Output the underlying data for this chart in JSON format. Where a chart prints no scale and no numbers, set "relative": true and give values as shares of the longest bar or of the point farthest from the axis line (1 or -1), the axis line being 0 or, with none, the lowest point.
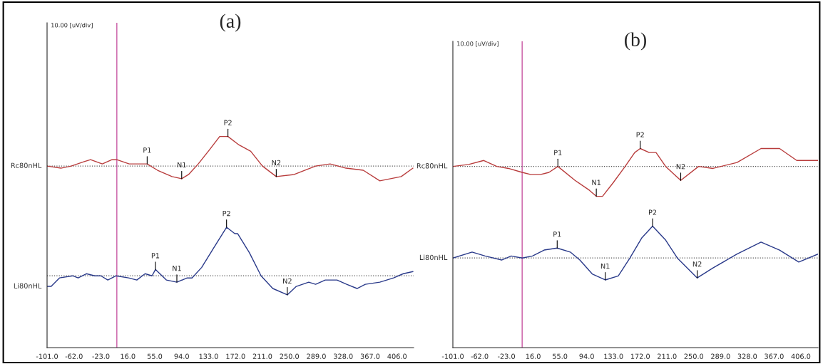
{
  "chart_data": [
    {
      "type": "line",
      "title": "(a)",
      "relative": true,
      "xlim": [
        -101,
        430
      ],
      "xticks": [
        {
          "value": -101,
          "label": "-101.0"
        },
        {
          "value": -62,
          "label": "-62.0"
        },
        {
          "value": -23,
          "label": "-23.0"
        },
        {
          "value": 16,
          "label": "16.0"
        },
        {
          "value": 55,
          "label": "55.0"
        },
        {
          "value": 94,
          "label": "94.0"
        },
        {
          "value": 133,
          "label": "133.0"
        },
        {
          "value": 172,
          "label": "172.0"
        },
        {
          "value": 211,
          "label": "211.0"
        },
        {
          "value": 250,
          "label": "250.0"
        },
        {
          "value": 289,
          "label": "289.0"
        },
        {
          "value": 328,
          "label": "328.0"
        },
        {
          "value": 367,
          "label": "367.0"
        },
        {
          "value": 406,
          "label": "406.0"
        }
      ],
      "tick_labels": "x",
      "legend": false,
      "grid": false,
      "line_style": "solid",
      "ref_lines": [
        {
          "axis": "x",
          "value": 0,
          "color": "#d070b0",
          "line_style": "solid"
        },
        {
          "axis": "y",
          "value": 0.86,
          "color": "#555555",
          "line_style": "dotted"
        },
        {
          "axis": "y",
          "value": 0.34,
          "color": "#555555",
          "line_style": "dotted"
        }
      ],
      "annotations": [
        "10.00 [uV/div]",
        {
          "text": "P1",
          "x": 44,
          "y": 0.87
        },
        {
          "text": "N1",
          "x": 94,
          "y": 0.8
        },
        {
          "text": "P2",
          "x": 161,
          "y": 1.0
        },
        {
          "text": "N2",
          "x": 231,
          "y": 0.81
        },
        {
          "text": "P1",
          "x": 56,
          "y": 0.37
        },
        {
          "text": "N1",
          "x": 87,
          "y": 0.31
        },
        {
          "text": "P2",
          "x": 159,
          "y": 0.57
        },
        {
          "text": "N2",
          "x": 247,
          "y": 0.25
        }
      ],
      "series": [
        {
          "name": "Rc80nHL",
          "color": "#b83c3c",
          "x": [
            -101,
            -81,
            -66,
            -48,
            -38,
            -21,
            -7,
            0,
            18,
            44,
            59,
            80,
            94,
            104,
            118,
            135,
            149,
            161,
            173,
            177,
            194,
            211,
            231,
            257,
            288,
            309,
            332,
            357,
            381,
            412,
            429
          ],
          "values": [
            0.86,
            0.85,
            0.86,
            0.88,
            0.89,
            0.87,
            0.89,
            0.89,
            0.87,
            0.87,
            0.84,
            0.81,
            0.8,
            0.82,
            0.87,
            0.94,
            1.0,
            1.0,
            0.97,
            0.96,
            0.93,
            0.86,
            0.81,
            0.82,
            0.86,
            0.87,
            0.85,
            0.84,
            0.79,
            0.81,
            0.85
          ]
        },
        {
          "name": "Li80nHL",
          "color": "#2a3a8a",
          "x": [
            -101,
            -95,
            -83,
            -64,
            -56,
            -44,
            -32,
            -23,
            -13,
            -1,
            17,
            29,
            41,
            51,
            56,
            72,
            87,
            102,
            109,
            123,
            140,
            159,
            171,
            175,
            192,
            209,
            226,
            247,
            260,
            278,
            288,
            302,
            319,
            333,
            348,
            360,
            381,
            401,
            415,
            429
          ],
          "values": [
            0.29,
            0.29,
            0.33,
            0.34,
            0.33,
            0.35,
            0.34,
            0.34,
            0.32,
            0.34,
            0.33,
            0.32,
            0.35,
            0.34,
            0.37,
            0.32,
            0.31,
            0.33,
            0.33,
            0.38,
            0.47,
            0.57,
            0.54,
            0.54,
            0.45,
            0.34,
            0.28,
            0.25,
            0.29,
            0.31,
            0.3,
            0.32,
            0.32,
            0.3,
            0.28,
            0.3,
            0.31,
            0.33,
            0.35,
            0.36
          ]
        }
      ]
    },
    {
      "type": "line",
      "title": "(b)",
      "relative": true,
      "xlim": [
        -101,
        431
      ],
      "xticks": [
        {
          "value": -101,
          "label": "-101.0"
        },
        {
          "value": -62,
          "label": "-62.0"
        },
        {
          "value": -23,
          "label": "-23.0"
        },
        {
          "value": 16,
          "label": "16.0"
        },
        {
          "value": 55,
          "label": "55.0"
        },
        {
          "value": 94,
          "label": "94.0"
        },
        {
          "value": 133,
          "label": "133.0"
        },
        {
          "value": 172,
          "label": "172.0"
        },
        {
          "value": 211,
          "label": "211.0"
        },
        {
          "value": 250,
          "label": "250.0"
        },
        {
          "value": 289,
          "label": "289.0"
        },
        {
          "value": 328,
          "label": "328.0"
        },
        {
          "value": 367,
          "label": "367.0"
        },
        {
          "value": 406,
          "label": "406.0"
        }
      ],
      "tick_labels": "x",
      "legend": false,
      "grid": false,
      "line_style": "solid",
      "ref_lines": [
        {
          "axis": "x",
          "value": 0,
          "color": "#d070b0",
          "line_style": "solid"
        },
        {
          "axis": "y",
          "value": 0.91,
          "color": "#555555",
          "line_style": "dotted"
        },
        {
          "axis": "y",
          "value": 0.45,
          "color": "#555555",
          "line_style": "dotted"
        }
      ],
      "annotations": [
        "10.00 [uV/div]",
        {
          "text": "P1",
          "x": 52,
          "y": 0.91
        },
        {
          "text": "N1",
          "x": 108,
          "y": 0.76
        },
        {
          "text": "P2",
          "x": 172,
          "y": 1.0
        },
        {
          "text": "N2",
          "x": 231,
          "y": 0.84
        },
        {
          "text": "P1",
          "x": 51,
          "y": 0.5
        },
        {
          "text": "N1",
          "x": 121,
          "y": 0.34
        },
        {
          "text": "P2",
          "x": 190,
          "y": 0.61
        },
        {
          "text": "N2",
          "x": 255,
          "y": 0.35
        }
      ],
      "series": [
        {
          "name": "Rc80nHL",
          "color": "#b83c3c",
          "x": [
            -101,
            -78,
            -56,
            -37,
            -20,
            0,
            12,
            27,
            39,
            52,
            77,
            98,
            108,
            117,
            133,
            150,
            164,
            172,
            185,
            195,
            209,
            231,
            257,
            278,
            313,
            348,
            375,
            400,
            413,
            431
          ],
          "values": [
            0.91,
            0.92,
            0.94,
            0.91,
            0.9,
            0.88,
            0.87,
            0.87,
            0.88,
            0.91,
            0.84,
            0.79,
            0.76,
            0.76,
            0.83,
            0.91,
            0.98,
            1.0,
            0.98,
            0.98,
            0.91,
            0.84,
            0.91,
            0.9,
            0.93,
            1.0,
            1.0,
            0.94,
            0.94,
            0.94
          ]
        },
        {
          "name": "Li80nHL",
          "color": "#2a3a8a",
          "x": [
            -101,
            -73,
            -54,
            -30,
            -16,
            0,
            15,
            32,
            51,
            70,
            84,
            102,
            121,
            140,
            157,
            174,
            190,
            209,
            226,
            255,
            278,
            313,
            348,
            375,
            403,
            431
          ],
          "values": [
            0.45,
            0.48,
            0.46,
            0.44,
            0.46,
            0.45,
            0.46,
            0.49,
            0.5,
            0.48,
            0.44,
            0.37,
            0.34,
            0.36,
            0.45,
            0.55,
            0.61,
            0.54,
            0.45,
            0.35,
            0.4,
            0.47,
            0.53,
            0.49,
            0.43,
            0.47
          ]
        }
      ]
    }
  ]
}
